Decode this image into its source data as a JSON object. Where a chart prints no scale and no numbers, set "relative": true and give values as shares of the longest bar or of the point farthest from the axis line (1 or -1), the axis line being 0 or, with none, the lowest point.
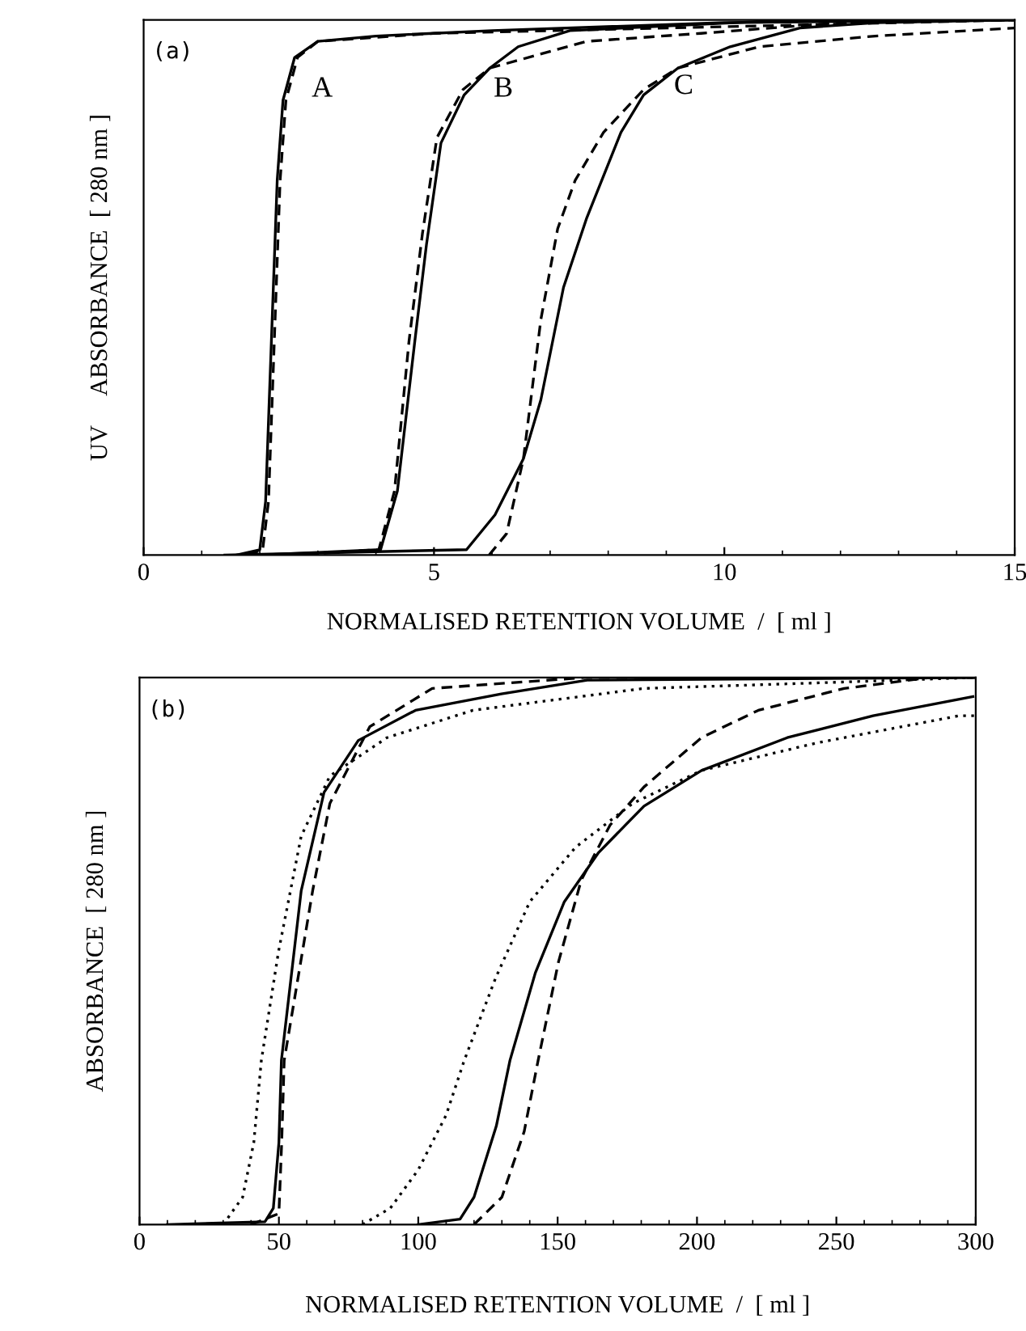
{
  "chart_data": [
    {
      "type": "line",
      "relative": true,
      "xlabel": "NORMALISED RETENTION VOLUME  /  [ ml ]",
      "ylabel": "UV     ABSORBANCE  [ 280 nm ]",
      "xlim": [
        0,
        15
      ],
      "xticks": [
        0,
        5,
        10,
        15
      ],
      "tick_labels": "x",
      "grid": false,
      "legend": false,
      "annotations": [
        "(a)",
        "A",
        "B",
        "C"
      ],
      "series": [
        {
          "color": "#000000",
          "line_style": "solid",
          "x": [
            1.6,
            2.0,
            2.1,
            2.2,
            2.3,
            2.4,
            2.6,
            3.0,
            4.0,
            6.0,
            10.0,
            15.0
          ],
          "values": [
            0,
            0.01,
            0.1,
            0.4,
            0.7,
            0.85,
            0.93,
            0.96,
            0.97,
            0.98,
            0.995,
            1.0
          ]
        },
        {
          "color": "#000000",
          "line_style": "dashed",
          "x": [
            1.8,
            2.05,
            2.15,
            2.25,
            2.35,
            2.45,
            2.65,
            3.0,
            5.0,
            15.0
          ],
          "values": [
            0,
            0.01,
            0.1,
            0.4,
            0.7,
            0.85,
            0.93,
            0.96,
            0.975,
            1.0
          ]
        },
        {
          "color": "#000000",
          "line_style": "solid",
          "x": [
            2.0,
            4.08,
            4.37,
            4.67,
            4.87,
            5.12,
            5.52,
            5.96,
            6.45,
            7.34,
            10.6,
            15.0
          ],
          "values": [
            0,
            0.01,
            0.12,
            0.4,
            0.58,
            0.77,
            0.86,
            0.91,
            0.95,
            0.98,
            0.997,
            1.0
          ]
        },
        {
          "color": "#000000",
          "line_style": "dashed",
          "x": [
            2.5,
            4.05,
            4.32,
            4.57,
            4.8,
            5.05,
            5.5,
            5.96,
            7.63,
            9.6,
            12.0,
            15.0
          ],
          "values": [
            0,
            0.01,
            0.12,
            0.4,
            0.6,
            0.78,
            0.87,
            0.91,
            0.96,
            0.975,
            0.995,
            1.0
          ]
        },
        {
          "color": "#000000",
          "line_style": "solid",
          "x": [
            1.4,
            5.56,
            6.05,
            6.54,
            6.84,
            7.23,
            7.63,
            8.22,
            8.61,
            9.2,
            10.1,
            11.3,
            12.6,
            15.0
          ],
          "values": [
            0,
            0.01,
            0.075,
            0.18,
            0.29,
            0.5,
            0.63,
            0.79,
            0.86,
            0.91,
            0.95,
            0.985,
            0.995,
            1.0
          ]
        },
        {
          "color": "#000000",
          "line_style": "dashed",
          "x": [
            5.95,
            6.25,
            6.54,
            6.84,
            7.13,
            7.43,
            7.92,
            8.61,
            9.2,
            10.6,
            12.6,
            15.0
          ],
          "values": [
            0,
            0.04,
            0.18,
            0.44,
            0.61,
            0.7,
            0.79,
            0.87,
            0.91,
            0.95,
            0.97,
            0.985
          ]
        }
      ]
    },
    {
      "type": "line",
      "relative": true,
      "xlabel": "NORMALISED RETENTION VOLUME  /  [ ml ]",
      "ylabel": "ABSORBANCE  [ 280 nm ]",
      "xlim": [
        0,
        300
      ],
      "xticks": [
        0,
        50,
        100,
        150,
        200,
        250,
        300
      ],
      "tick_labels": "x",
      "grid": false,
      "legend": false,
      "annotations": [
        "(b)"
      ],
      "series": [
        {
          "color": "#000000",
          "line_style": "solid",
          "x": [
            10,
            45,
            48,
            50,
            50.9,
            58,
            66.2,
            78.5,
            99,
            129.8,
            160.6,
            300
          ],
          "values": [
            0,
            0.005,
            0.03,
            0.15,
            0.3,
            0.61,
            0.79,
            0.885,
            0.94,
            0.97,
            0.995,
            1.0
          ]
        },
        {
          "color": "#000000",
          "line_style": "dashed",
          "x": [
            40,
            50,
            51,
            51.9,
            62.1,
            68.3,
            82.6,
            105,
            160,
            300
          ],
          "values": [
            0,
            0.02,
            0.15,
            0.3,
            0.61,
            0.77,
            0.91,
            0.98,
            1.0,
            1.0
          ]
        },
        {
          "color": "#000000",
          "line_style": "dotted",
          "x": [
            30,
            37,
            41,
            43.7,
            49.9,
            58,
            68.3,
            88.8,
            119.6,
            181,
            242.6,
            300
          ],
          "values": [
            0,
            0.05,
            0.15,
            0.3,
            0.5,
            0.71,
            0.82,
            0.89,
            0.94,
            0.98,
            0.99,
            1.0
          ]
        },
        {
          "color": "#000000",
          "line_style": "solid",
          "x": [
            100,
            115,
            120,
            128,
            132.9,
            142,
            152.4,
            164.7,
            181,
            201.6,
            232.4,
            263.2,
            299
          ],
          "values": [
            0,
            0.01,
            0.05,
            0.18,
            0.3,
            0.46,
            0.59,
            0.68,
            0.765,
            0.83,
            0.89,
            0.93,
            0.965
          ]
        },
        {
          "color": "#000000",
          "line_style": "dashed",
          "x": [
            120,
            130,
            138,
            143,
            150.3,
            158.5,
            168.8,
            181,
            201.6,
            222,
            252.8,
            283.6,
            300
          ],
          "values": [
            0,
            0.05,
            0.17,
            0.3,
            0.48,
            0.63,
            0.73,
            0.8,
            0.89,
            0.94,
            0.98,
            1.0,
            1.0
          ]
        },
        {
          "color": "#000000",
          "line_style": "dotted",
          "x": [
            80,
            90,
            100,
            110,
            116.5,
            127.7,
            140,
            156.5,
            177,
            201.6,
            242.6,
            293.9,
            300
          ],
          "values": [
            0,
            0.03,
            0.1,
            0.2,
            0.3,
            0.45,
            0.59,
            0.69,
            0.77,
            0.83,
            0.88,
            0.93,
            0.93
          ]
        }
      ]
    }
  ]
}
